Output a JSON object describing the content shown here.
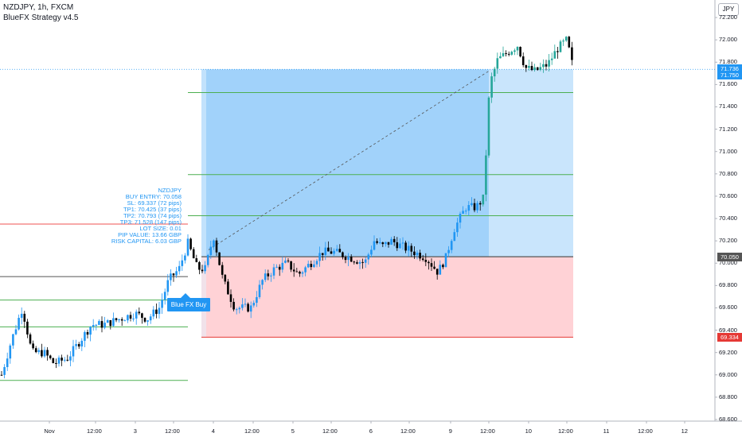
{
  "header": {
    "title": "NZDJPY, 1h, FXCM",
    "strategy": "BlueFX Strategy v4.5"
  },
  "currency_badge": "JPY",
  "signal_button": "Blue FX Buy",
  "info_lines": [
    "NZDJPY",
    "BUY ENTRY: 70.058",
    "SL: 69.337 (72 pips)",
    "TP1: 70.425 (37 pips)",
    "TP2: 70.793 (74 pips)",
    "TP3: 71.528 (147 pips)",
    "LOT SIZE: 0.01",
    "PIP VALUE: 13.66 GBP",
    "RISK CAPITAL: 6.03 GBP"
  ],
  "price_tags": [
    {
      "value": "71.736",
      "price": 71.736,
      "color": "#2196f3"
    },
    {
      "value": "71.750",
      "price": 71.75,
      "color": "#2196f3"
    },
    {
      "value": "70.050",
      "price": 70.05,
      "color": "#555555"
    },
    {
      "value": "69.334",
      "price": 69.334,
      "color": "#e53935"
    }
  ],
  "colors": {
    "up": "#2196f3",
    "down": "#000000",
    "tp3_up": "#26a69a",
    "profit_zone": "#90caf9",
    "loss_zone": "#ffcdd2",
    "tp_line": "#4caf50",
    "sl_line": "#ef5350"
  },
  "chart_data": {
    "type": "candlestick",
    "symbol": "NZDJPY",
    "interval": "1h",
    "broker": "FXCM",
    "ylim": [
      68.6,
      72.3
    ],
    "y_ticks": [
      "72.200",
      "72.000",
      "71.800",
      "71.600",
      "71.400",
      "71.200",
      "71.000",
      "70.800",
      "70.600",
      "70.400",
      "70.200",
      "70.000",
      "69.800",
      "69.600",
      "69.400",
      "69.200",
      "69.000",
      "68.800",
      "68.600"
    ],
    "x_ticks": [
      "Nov",
      "12:00",
      "3",
      "12:00",
      "4",
      "12:00",
      "5",
      "12:00",
      "6",
      "12:00",
      "9",
      "12:00",
      "10",
      "12:00",
      "11",
      "12:00",
      "12"
    ],
    "levels": {
      "entry": 70.058,
      "stop_loss": 69.337,
      "tp1": 70.425,
      "tp2": 70.793,
      "tp3": 71.528,
      "current_price": 71.736
    },
    "grid": false
  }
}
